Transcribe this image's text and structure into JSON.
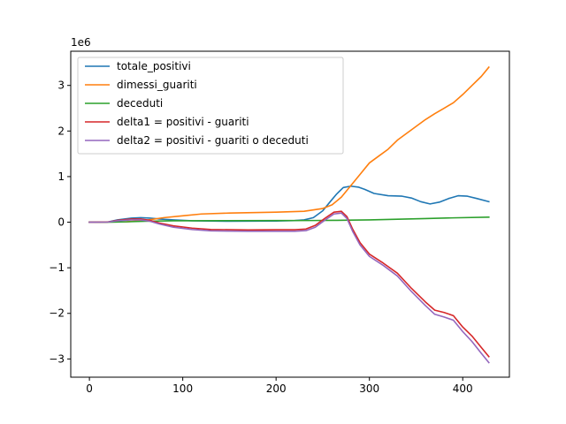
{
  "chart_data": {
    "type": "line",
    "title": "",
    "xlabel": "",
    "ylabel": "",
    "y_offset_text": "1e6",
    "xlim": [
      -20,
      450
    ],
    "ylim": [
      -3.4,
      3.75
    ],
    "xticks": [
      0,
      100,
      200,
      300,
      400
    ],
    "yticks": [
      -3,
      -2,
      -1,
      0,
      1,
      2,
      3
    ],
    "grid": false,
    "legend_position": "upper-left",
    "series": [
      {
        "name": "totale_positivi",
        "color": "#1f77b4",
        "points": [
          [
            0,
            0.0
          ],
          [
            20,
            0.005
          ],
          [
            30,
            0.05
          ],
          [
            45,
            0.09
          ],
          [
            55,
            0.1
          ],
          [
            65,
            0.09
          ],
          [
            75,
            0.07
          ],
          [
            90,
            0.05
          ],
          [
            110,
            0.03
          ],
          [
            150,
            0.02
          ],
          [
            200,
            0.025
          ],
          [
            220,
            0.035
          ],
          [
            230,
            0.05
          ],
          [
            240,
            0.1
          ],
          [
            250,
            0.25
          ],
          [
            258,
            0.45
          ],
          [
            265,
            0.62
          ],
          [
            272,
            0.76
          ],
          [
            280,
            0.79
          ],
          [
            288,
            0.77
          ],
          [
            295,
            0.72
          ],
          [
            305,
            0.63
          ],
          [
            320,
            0.58
          ],
          [
            335,
            0.57
          ],
          [
            345,
            0.53
          ],
          [
            355,
            0.45
          ],
          [
            365,
            0.4
          ],
          [
            375,
            0.44
          ],
          [
            385,
            0.52
          ],
          [
            395,
            0.58
          ],
          [
            405,
            0.57
          ],
          [
            415,
            0.52
          ],
          [
            428,
            0.45
          ]
        ]
      },
      {
        "name": "dimessi_guariti",
        "color": "#ff7f0e",
        "points": [
          [
            0,
            0.0
          ],
          [
            40,
            0.01
          ],
          [
            60,
            0.04
          ],
          [
            80,
            0.1
          ],
          [
            100,
            0.14
          ],
          [
            120,
            0.18
          ],
          [
            150,
            0.2
          ],
          [
            200,
            0.22
          ],
          [
            230,
            0.24
          ],
          [
            250,
            0.3
          ],
          [
            260,
            0.38
          ],
          [
            270,
            0.55
          ],
          [
            280,
            0.8
          ],
          [
            290,
            1.05
          ],
          [
            300,
            1.3
          ],
          [
            310,
            1.45
          ],
          [
            320,
            1.6
          ],
          [
            330,
            1.8
          ],
          [
            340,
            1.95
          ],
          [
            350,
            2.1
          ],
          [
            360,
            2.25
          ],
          [
            370,
            2.38
          ],
          [
            380,
            2.5
          ],
          [
            390,
            2.62
          ],
          [
            400,
            2.8
          ],
          [
            410,
            3.0
          ],
          [
            420,
            3.2
          ],
          [
            428,
            3.4
          ]
        ]
      },
      {
        "name": "deceduti",
        "color": "#2ca02c",
        "points": [
          [
            0,
            0.0
          ],
          [
            30,
            0.003
          ],
          [
            60,
            0.02
          ],
          [
            90,
            0.03
          ],
          [
            200,
            0.035
          ],
          [
            240,
            0.037
          ],
          [
            260,
            0.04
          ],
          [
            280,
            0.045
          ],
          [
            300,
            0.05
          ],
          [
            330,
            0.065
          ],
          [
            360,
            0.08
          ],
          [
            390,
            0.095
          ],
          [
            428,
            0.11
          ]
        ]
      },
      {
        "name": "delta1 = positivi - guariti",
        "color": "#d62728",
        "points": [
          [
            0,
            0.0
          ],
          [
            20,
            0.005
          ],
          [
            30,
            0.04
          ],
          [
            45,
            0.07
          ],
          [
            55,
            0.07
          ],
          [
            65,
            0.04
          ],
          [
            75,
            -0.02
          ],
          [
            90,
            -0.08
          ],
          [
            110,
            -0.13
          ],
          [
            130,
            -0.16
          ],
          [
            170,
            -0.17
          ],
          [
            200,
            -0.165
          ],
          [
            220,
            -0.165
          ],
          [
            232,
            -0.15
          ],
          [
            242,
            -0.07
          ],
          [
            252,
            0.08
          ],
          [
            262,
            0.22
          ],
          [
            270,
            0.24
          ],
          [
            276,
            0.12
          ],
          [
            282,
            -0.15
          ],
          [
            290,
            -0.45
          ],
          [
            300,
            -0.7
          ],
          [
            315,
            -0.9
          ],
          [
            330,
            -1.12
          ],
          [
            345,
            -1.45
          ],
          [
            360,
            -1.75
          ],
          [
            370,
            -1.93
          ],
          [
            380,
            -1.98
          ],
          [
            390,
            -2.05
          ],
          [
            400,
            -2.3
          ],
          [
            410,
            -2.5
          ],
          [
            420,
            -2.75
          ],
          [
            428,
            -2.95
          ]
        ]
      },
      {
        "name": "delta2 = positivi - guariti o deceduti",
        "color": "#9467bd",
        "points": [
          [
            0,
            0.0
          ],
          [
            20,
            0.003
          ],
          [
            30,
            0.03
          ],
          [
            45,
            0.05
          ],
          [
            55,
            0.05
          ],
          [
            65,
            0.02
          ],
          [
            75,
            -0.04
          ],
          [
            90,
            -0.11
          ],
          [
            110,
            -0.16
          ],
          [
            130,
            -0.19
          ],
          [
            170,
            -0.2
          ],
          [
            200,
            -0.2
          ],
          [
            220,
            -0.2
          ],
          [
            232,
            -0.185
          ],
          [
            242,
            -0.11
          ],
          [
            252,
            0.04
          ],
          [
            262,
            0.18
          ],
          [
            270,
            0.2
          ],
          [
            276,
            0.08
          ],
          [
            282,
            -0.2
          ],
          [
            290,
            -0.5
          ],
          [
            300,
            -0.75
          ],
          [
            315,
            -0.95
          ],
          [
            330,
            -1.18
          ],
          [
            345,
            -1.52
          ],
          [
            360,
            -1.83
          ],
          [
            370,
            -2.02
          ],
          [
            380,
            -2.08
          ],
          [
            390,
            -2.15
          ],
          [
            400,
            -2.4
          ],
          [
            410,
            -2.62
          ],
          [
            420,
            -2.88
          ],
          [
            428,
            -3.08
          ]
        ]
      }
    ]
  }
}
